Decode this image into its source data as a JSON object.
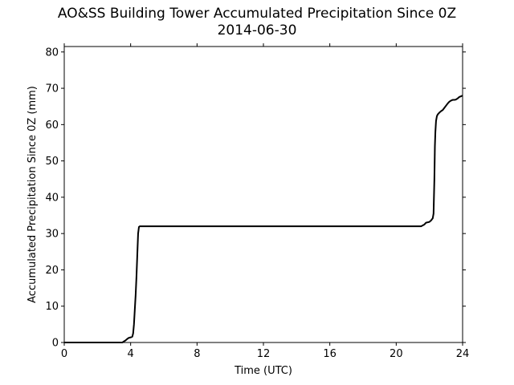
{
  "chart_data": {
    "type": "line",
    "title": "AO&SS Building Tower Accumulated Precipitation Since 0Z",
    "subtitle": "2014-06-30",
    "xlabel": "Time (UTC)",
    "ylabel": "Accumulated Precipitation Since 0Z (mm)",
    "xlim": [
      0,
      24
    ],
    "ylim": [
      0,
      81.5
    ],
    "xticks": [
      0,
      4,
      8,
      12,
      16,
      20,
      24
    ],
    "yticks": [
      0,
      10,
      20,
      30,
      40,
      50,
      60,
      70,
      80
    ],
    "grid": false,
    "line_color": "#000000",
    "series": [
      {
        "x": [
          0,
          3.5,
          3.6,
          3.7,
          3.8,
          3.9,
          4.0,
          4.1,
          4.15,
          4.2,
          4.25,
          4.3,
          4.35,
          4.4,
          4.45,
          4.5,
          4.55,
          4.6,
          8,
          12,
          16,
          20,
          21.5,
          21.7,
          21.8,
          22.0,
          22.1,
          22.2,
          22.25,
          22.3,
          22.33,
          22.36,
          22.4,
          22.45,
          22.5,
          22.6,
          22.7,
          22.8,
          22.9,
          23.0,
          23.1,
          23.2,
          23.3,
          23.4,
          23.5,
          23.6,
          23.7,
          23.8,
          23.9,
          24.0
        ],
        "y": [
          0,
          0,
          0.3,
          0.6,
          1.0,
          1.3,
          1.4,
          1.6,
          2.5,
          5.0,
          9.0,
          13.0,
          18.0,
          24.0,
          30.0,
          31.8,
          32.0,
          32.0,
          32.0,
          32.0,
          32.0,
          32.0,
          32.0,
          32.5,
          33.0,
          33.2,
          33.6,
          34.2,
          35.5,
          45.0,
          54.0,
          58.0,
          61.0,
          62.3,
          62.8,
          63.3,
          63.7,
          64.0,
          64.6,
          65.2,
          65.8,
          66.3,
          66.6,
          66.8,
          66.8,
          66.9,
          67.2,
          67.6,
          67.8,
          68.0
        ]
      }
    ]
  }
}
